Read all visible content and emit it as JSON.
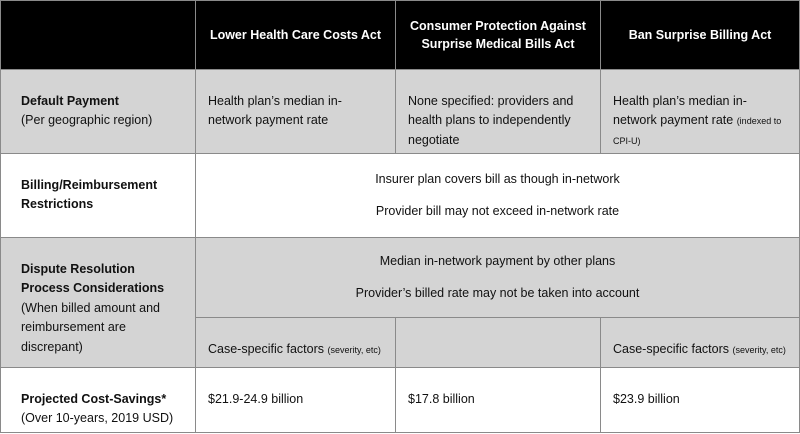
{
  "header": {
    "columns": [
      "Lower Health Care Costs Act",
      "Consumer Protection Against Surprise Medical Bills Act",
      "Ban Surprise Billing Act"
    ]
  },
  "rows": {
    "default_payment": {
      "label": "Default Payment",
      "sublabel": "(Per geographic region)",
      "cells": [
        "Health plan’s median in-network payment rate",
        "None specified: providers and health plans to independently negotiate",
        "Health plan’s median in-network payment rate"
      ],
      "cell3_note": "(indexed to CPI-U)"
    },
    "billing": {
      "label": "Billing/Reimbursement Restrictions",
      "line1": "Insurer plan covers bill as though in-network",
      "line2": "Provider bill may not exceed in-network rate"
    },
    "dispute": {
      "label": "Dispute Resolution Process Considerations",
      "sublabel": "(When billed amount and reimbursement are discrepant)",
      "line1": "Median in-network payment by other plans",
      "line2": "Provider’s billed rate may not be taken into account",
      "case_main": "Case-specific factors",
      "case_note": "(severity, etc)"
    },
    "savings": {
      "label": "Projected Cost-Savings*",
      "sublabel": "(Over 10-years, 2019 USD)",
      "cells": [
        "$21.9-24.9 billion",
        "$17.8 billion",
        "$23.9 billion"
      ]
    }
  }
}
